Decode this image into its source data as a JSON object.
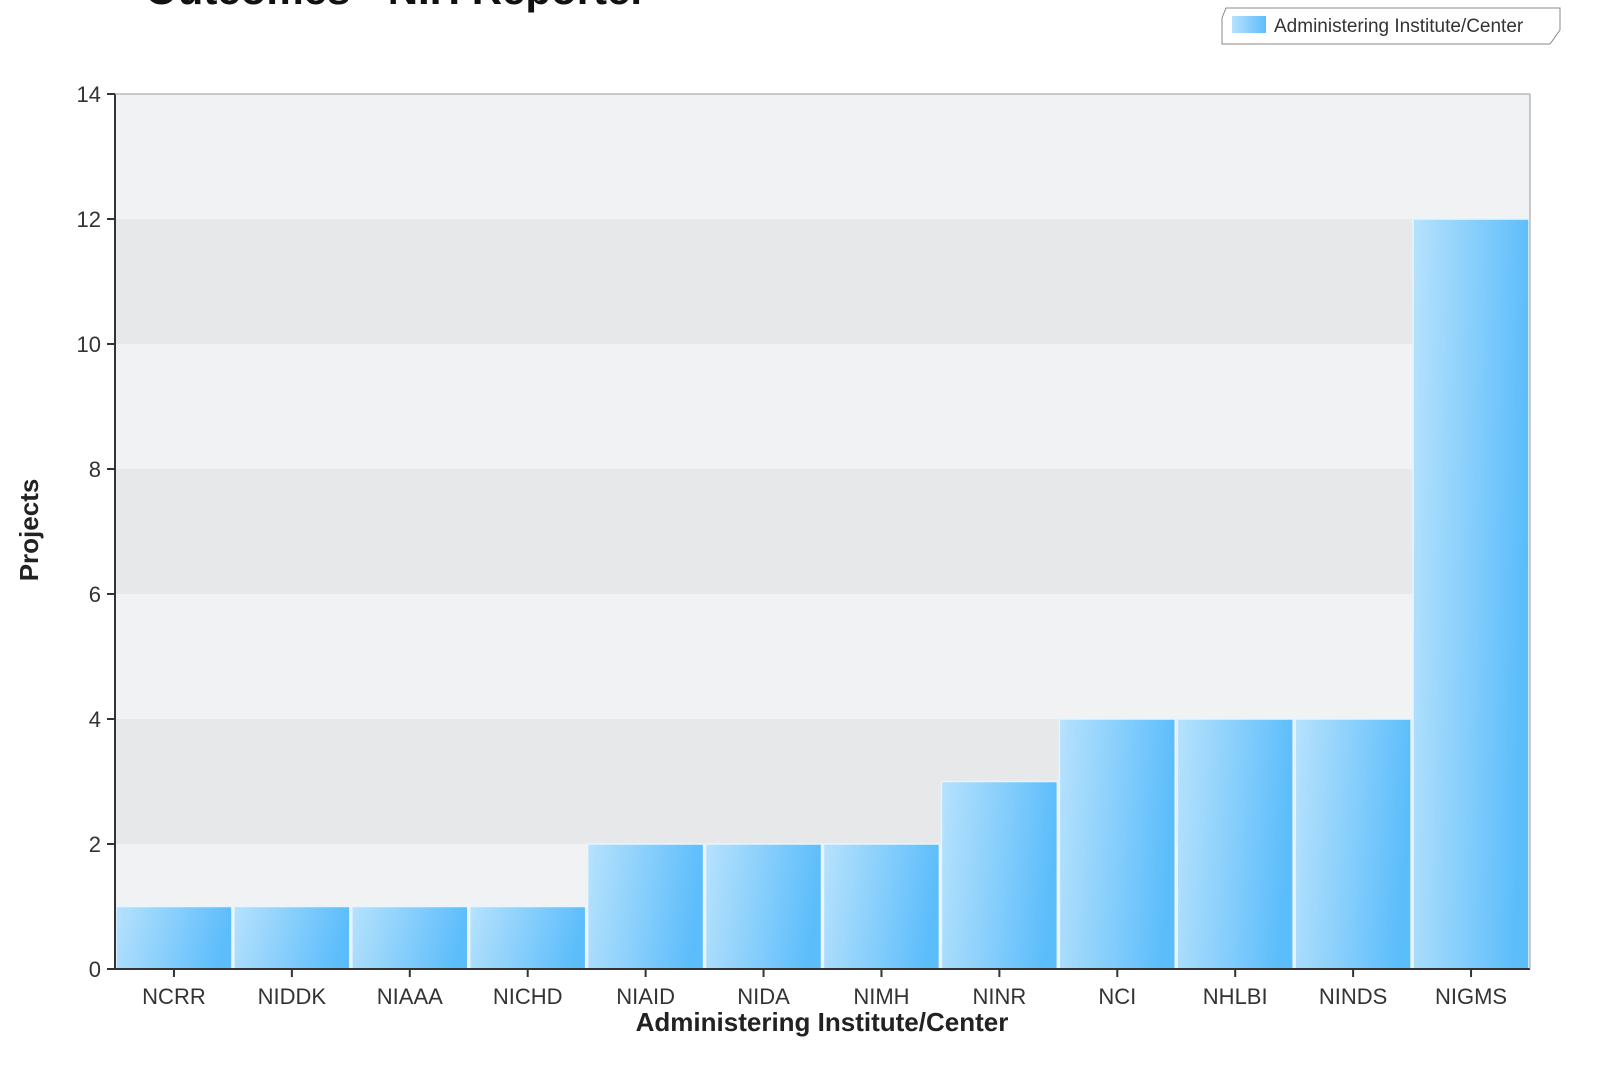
{
  "chart_data": {
    "type": "bar",
    "title": "Outcomes - NIH Reporter",
    "xlabel": "Administering Institute/Center",
    "ylabel": "Projects",
    "categories": [
      "NCRR",
      "NIDDK",
      "NIAAA",
      "NICHD",
      "NIAID",
      "NIDA",
      "NIMH",
      "NINR",
      "NCI",
      "NHLBI",
      "NINDS",
      "NIGMS"
    ],
    "series": [
      {
        "name": "Administering Institute/Center",
        "values": [
          1,
          1,
          1,
          1,
          2,
          2,
          2,
          3,
          4,
          4,
          4,
          12
        ]
      }
    ],
    "ylim": [
      0,
      14
    ],
    "yticks": [
      0,
      2,
      4,
      6,
      8,
      10,
      12,
      14
    ],
    "grid": "alternating horizontal bands",
    "legend": "top-right",
    "colors": {
      "bar_light": "#b7e2fd",
      "bar_dark": "#5cbdfb",
      "bar_edge": "#e6f5ff",
      "band_light": "#f0f2f4",
      "band_dark": "#e6e8ea",
      "axis": "#333333"
    }
  }
}
